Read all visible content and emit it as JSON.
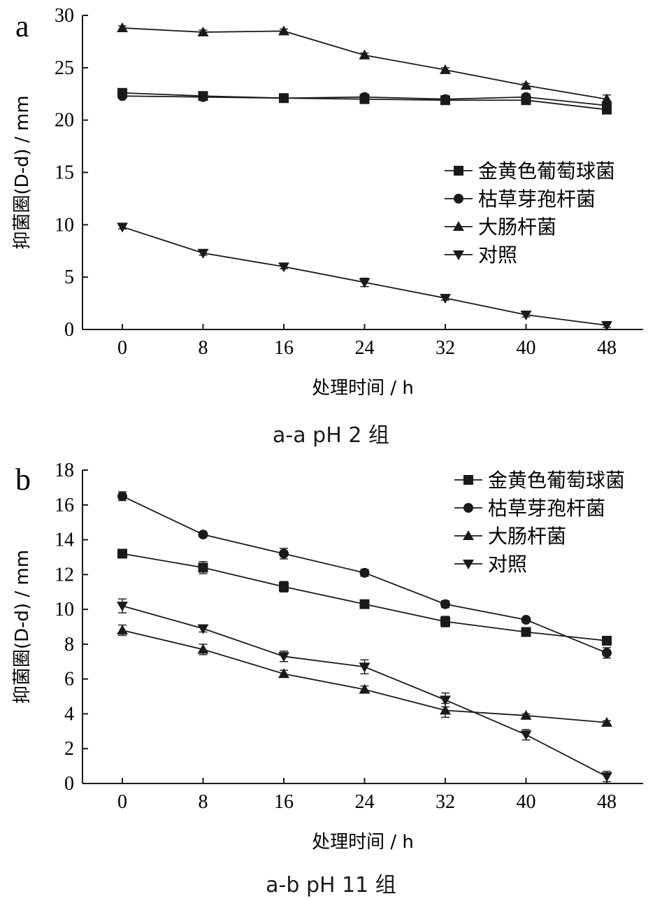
{
  "chart_data": [
    {
      "type": "line",
      "panel_label": "a",
      "caption": "a-a pH 2 组",
      "xlabel": "处理时间 / h",
      "ylabel": "抑菌圈(D-d) / mm",
      "x": [
        0,
        8,
        16,
        24,
        32,
        40,
        48
      ],
      "xticks": [
        "0",
        "8",
        "16",
        "24",
        "32",
        "40",
        "48"
      ],
      "yticks": [
        "0",
        "5",
        "10",
        "15",
        "20",
        "25",
        "30"
      ],
      "ylim": [
        0,
        30
      ],
      "legend_position": "center-right",
      "series": [
        {
          "name": "金黄色葡萄球菌",
          "marker": "square",
          "values": [
            22.6,
            22.3,
            22.1,
            22.0,
            21.9,
            21.9,
            21.0
          ],
          "errors": [
            0.2,
            0.2,
            0.2,
            0.3,
            0.2,
            0.4,
            0.2
          ]
        },
        {
          "name": "枯草芽孢杆菌",
          "marker": "circle",
          "values": [
            22.3,
            22.2,
            22.1,
            22.2,
            22.0,
            22.2,
            21.4
          ],
          "errors": [
            0.2,
            0.2,
            0.2,
            0.3,
            0.2,
            0.3,
            0.3
          ]
        },
        {
          "name": "大肠杆菌",
          "marker": "triangle-up",
          "values": [
            28.8,
            28.4,
            28.5,
            26.2,
            24.8,
            23.3,
            22.0
          ],
          "errors": [
            0.2,
            0.2,
            0.2,
            0.2,
            0.2,
            0.2,
            0.4
          ]
        },
        {
          "name": "对照",
          "marker": "triangle-down",
          "values": [
            9.8,
            7.3,
            6.0,
            4.5,
            3.0,
            1.4,
            0.4
          ],
          "errors": [
            0.2,
            0.2,
            0.2,
            0.4,
            0.2,
            0.2,
            0.2
          ]
        }
      ]
    },
    {
      "type": "line",
      "panel_label": "b",
      "caption": "a-b pH 11 组",
      "xlabel": "处理时间 / h",
      "ylabel": "抑菌圈(D-d) / mm",
      "x": [
        0,
        8,
        16,
        24,
        32,
        40,
        48
      ],
      "xticks": [
        "0",
        "8",
        "16",
        "24",
        "32",
        "40",
        "48"
      ],
      "yticks": [
        "0",
        "2",
        "4",
        "6",
        "8",
        "10",
        "12",
        "14",
        "16",
        "18"
      ],
      "ylim": [
        0,
        18
      ],
      "legend_position": "top-right",
      "series": [
        {
          "name": "金黄色葡萄球菌",
          "marker": "square",
          "values": [
            13.2,
            12.4,
            11.3,
            10.3,
            9.3,
            8.7,
            8.2
          ],
          "errors": [
            0.1,
            0.35,
            0.3,
            0.1,
            0.3,
            0.1,
            0.1
          ]
        },
        {
          "name": "枯草芽孢杆菌",
          "marker": "circle",
          "values": [
            16.5,
            14.3,
            13.2,
            12.1,
            10.3,
            9.4,
            7.5
          ],
          "errors": [
            0.25,
            0.15,
            0.3,
            0.2,
            0.2,
            0.1,
            0.3
          ]
        },
        {
          "name": "大肠杆菌",
          "marker": "triangle-up",
          "values": [
            8.8,
            7.7,
            6.3,
            5.4,
            4.2,
            3.9,
            3.5
          ],
          "errors": [
            0.3,
            0.3,
            0.2,
            0.2,
            0.4,
            0.1,
            0.1
          ]
        },
        {
          "name": "对照",
          "marker": "triangle-down",
          "values": [
            10.2,
            8.9,
            7.3,
            6.7,
            4.8,
            2.8,
            0.4
          ],
          "errors": [
            0.4,
            0.2,
            0.3,
            0.4,
            0.4,
            0.3,
            0.3
          ]
        }
      ]
    }
  ]
}
